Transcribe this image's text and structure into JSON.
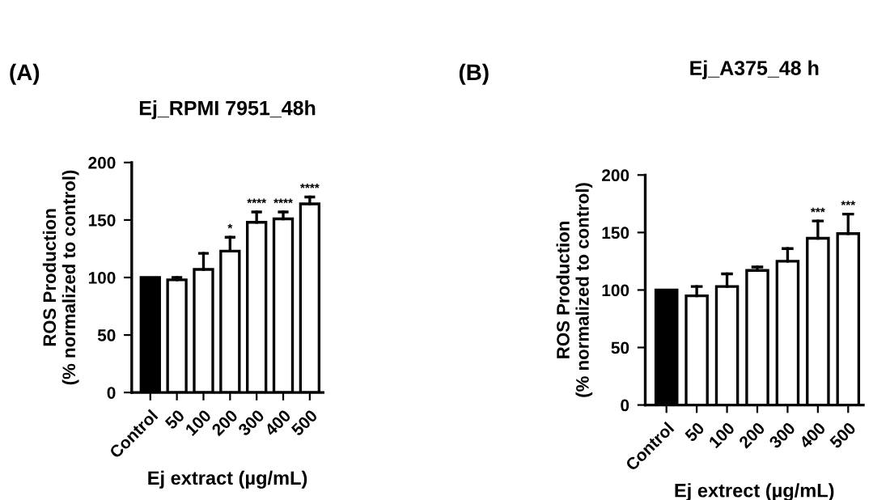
{
  "chart_data": [
    {
      "type": "bar",
      "title": "Ej_RPMI 7951_48h",
      "xlabel": "Ej extract (µg/mL)",
      "ylabel": "ROS Production\n(% normalized to control)",
      "categories": [
        "Control",
        "50",
        "100",
        "200",
        "300",
        "400",
        "500"
      ],
      "values": [
        100,
        98,
        107,
        123,
        148,
        151,
        164
      ],
      "colors": [
        "#000000",
        "#ffffff",
        "#ffffff",
        "#ffffff",
        "#ffffff",
        "#ffffff",
        "#ffffff"
      ],
      "errors": [
        null,
        [
          98,
          100
        ],
        [
          107,
          121
        ],
        [
          123,
          135
        ],
        [
          148,
          157
        ],
        [
          151,
          157
        ],
        [
          164,
          170
        ]
      ],
      "ylim": [
        0,
        200
      ],
      "yticks": [
        0,
        50,
        100,
        150,
        200
      ],
      "annotations": [
        "(A)",
        {
          "text": "*",
          "x": "200",
          "y": 135
        },
        {
          "text": "****",
          "x": "300",
          "y": 157
        },
        {
          "text": "****",
          "x": "400",
          "y": 157
        },
        {
          "text": "****",
          "x": "500",
          "y": 170
        }
      ]
    },
    {
      "type": "bar",
      "title": "Ej_A375_48 h",
      "xlabel": "Ej extrect (µg/mL)",
      "ylabel": "ROS Production\n(% normalized to control)",
      "categories": [
        "Control",
        "50",
        "100",
        "200",
        "300",
        "400",
        "500"
      ],
      "values": [
        100,
        95,
        103,
        117,
        125,
        145,
        149
      ],
      "colors": [
        "#000000",
        "#ffffff",
        "#ffffff",
        "#ffffff",
        "#ffffff",
        "#ffffff",
        "#ffffff"
      ],
      "errors": [
        null,
        [
          95,
          103
        ],
        [
          103,
          114
        ],
        [
          117,
          120
        ],
        [
          125,
          136
        ],
        [
          145,
          160
        ],
        [
          149,
          166
        ]
      ],
      "ylim": [
        0,
        200
      ],
      "yticks": [
        0,
        50,
        100,
        150,
        200
      ],
      "annotations": [
        "(B)",
        {
          "text": "***",
          "x": "400",
          "y": 160
        },
        {
          "text": "***",
          "x": "500",
          "y": 166
        }
      ]
    }
  ]
}
